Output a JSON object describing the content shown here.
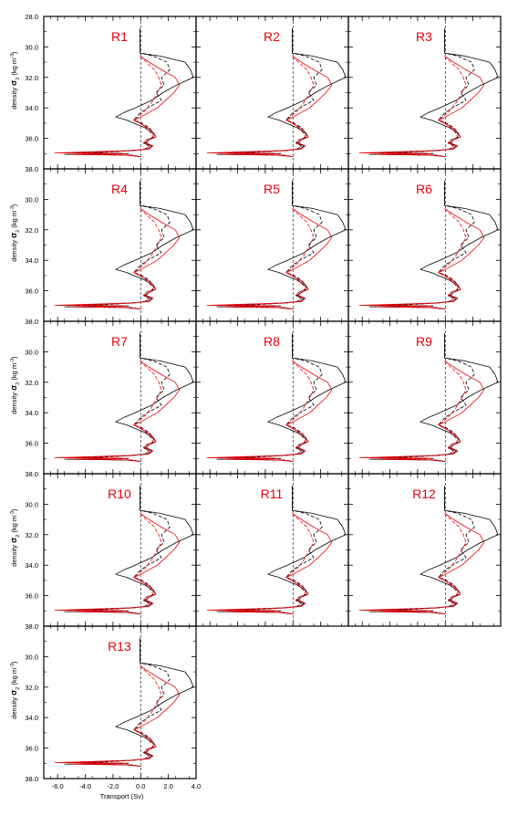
{
  "figure": {
    "x_axis_title": "Transport (Sv)",
    "y_axis_title_parts": [
      "density ",
      "σ",
      "2",
      " (kg m",
      "-3",
      ")"
    ],
    "colors": {
      "series_a": "#000000",
      "series_b": "#e8000b",
      "panel_label": "#e8000b",
      "zero_line": "#000000"
    }
  },
  "chart_data": {
    "type": "line",
    "layout": "small-multiples grid, 3 columns",
    "xlim": [
      -7,
      4
    ],
    "ylim": [
      38.0,
      28.0
    ],
    "y_inverted": true,
    "x_ticks": [
      -6.0,
      -4.0,
      -2.0,
      0.0,
      2.0,
      4.0
    ],
    "x_tick_labels": [
      "-6.0",
      "-4.0",
      "-2.0",
      "0.0",
      "2.0",
      "4.0"
    ],
    "y_ticks": [
      28.0,
      30.0,
      32.0,
      34.0,
      36.0,
      38.0
    ],
    "y_tick_labels": [
      "28.0",
      "30.0",
      "32.0",
      "34.0",
      "36.0",
      "38.0"
    ],
    "zero_line": {
      "x": 0,
      "style": "dashed"
    },
    "panels": [
      "R1",
      "R2",
      "R3",
      "R4",
      "R5",
      "R6",
      "R7",
      "R8",
      "R9",
      "R10",
      "R11",
      "R12",
      "R13"
    ],
    "series": [
      {
        "color": "#000000",
        "dash": "solid",
        "y": [
          28.8,
          29.6,
          30.4,
          30.6,
          31.0,
          31.5,
          32.0,
          32.5,
          33.0,
          33.5,
          34.0,
          34.3,
          34.6,
          34.8,
          35.0,
          35.3,
          35.6,
          35.9,
          36.1,
          36.3,
          36.5,
          36.7,
          36.8,
          36.95,
          37.0,
          37.05,
          37.1,
          37.2
        ],
        "x": [
          -0.05,
          -0.05,
          -0.05,
          1.4,
          3.2,
          3.6,
          3.8,
          2.6,
          1.6,
          0.8,
          -0.4,
          -1.2,
          -1.8,
          -1.0,
          -0.5,
          0.3,
          0.8,
          1.1,
          0.6,
          0.3,
          0.8,
          0.5,
          -0.8,
          -4.8,
          -1.2,
          -5.5,
          -1.0,
          0.0
        ]
      },
      {
        "color": "#000000",
        "dash": "dashed",
        "y": [
          28.8,
          29.6,
          30.4,
          30.6,
          31.0,
          31.5,
          32.0,
          32.5,
          33.0,
          33.5,
          34.0,
          34.3,
          34.6,
          34.8,
          35.0,
          35.3,
          35.6,
          35.9,
          36.1,
          36.3,
          36.5,
          36.7,
          36.8,
          36.95,
          37.0,
          37.05,
          37.1,
          37.2
        ],
        "x": [
          -0.05,
          -0.05,
          -0.05,
          0.9,
          1.9,
          2.1,
          1.5,
          1.7,
          1.1,
          1.5,
          0.5,
          0.0,
          -0.3,
          -0.5,
          0.1,
          0.6,
          0.9,
          1.0,
          0.4,
          0.2,
          0.6,
          0.3,
          -0.5,
          -3.5,
          -0.8,
          -4.0,
          -0.6,
          0.0
        ]
      },
      {
        "color": "#e8000b",
        "dash": "solid",
        "y": [
          30.6,
          31.0,
          31.5,
          32.0,
          32.5,
          33.0,
          33.5,
          34.0,
          34.3,
          34.6,
          34.8,
          35.0,
          35.3,
          35.6,
          35.9,
          36.1,
          36.3,
          36.5,
          36.7,
          36.8,
          36.95,
          37.0,
          37.05,
          37.1,
          37.2
        ],
        "x": [
          -0.05,
          0.6,
          1.5,
          2.5,
          2.8,
          2.4,
          1.8,
          1.2,
          0.6,
          0.0,
          -0.5,
          -0.1,
          0.5,
          0.9,
          1.1,
          0.6,
          0.4,
          0.9,
          0.6,
          -0.8,
          -6.2,
          -1.5,
          -5.0,
          -1.2,
          0.0
        ]
      },
      {
        "color": "#e8000b",
        "dash": "dashed",
        "y": [
          30.6,
          31.0,
          31.5,
          32.0,
          32.5,
          33.0,
          33.5,
          34.0,
          34.3,
          34.6,
          34.8,
          35.0,
          35.3,
          35.6,
          35.9,
          36.1,
          36.3,
          36.5,
          36.7,
          36.8,
          36.95,
          37.0,
          37.05,
          37.1,
          37.2
        ],
        "x": [
          -0.05,
          0.4,
          1.0,
          1.3,
          1.5,
          1.2,
          0.9,
          0.5,
          0.2,
          -0.2,
          -0.4,
          0.0,
          0.4,
          0.7,
          0.9,
          0.4,
          0.2,
          0.6,
          0.4,
          -0.5,
          -4.5,
          -1.0,
          -3.6,
          -0.8,
          0.0
        ]
      }
    ]
  }
}
